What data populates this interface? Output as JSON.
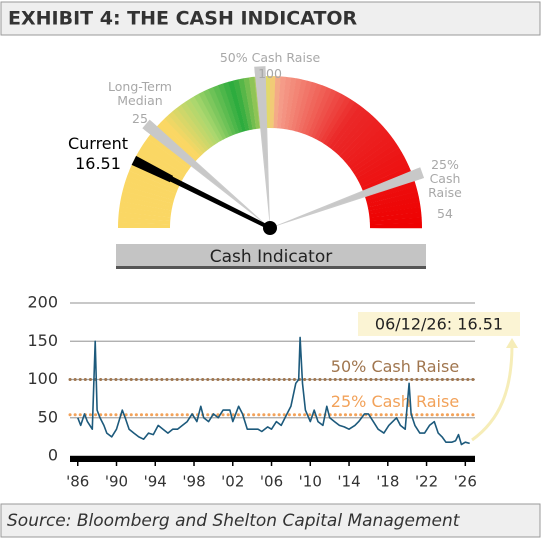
{
  "header": {
    "title": "EXHIBIT 4: THE CASH INDICATOR"
  },
  "chart_data": [
    {
      "type": "gauge",
      "title": "Cash Indicator",
      "lim": [
        0,
        112.5
      ],
      "current": {
        "label": "Current",
        "value": 16.51,
        "color": "#000000"
      },
      "markers": [
        {
          "label": "Long-Term Median",
          "value": 25
        },
        {
          "label": "25% Cash Raise",
          "value": 54
        },
        {
          "label": "50% Cash Raise",
          "value": 100
        }
      ],
      "marker_color": "#c8c8c8"
    },
    {
      "type": "line",
      "color": "#1d5a7c",
      "x": [
        1986,
        1986.3,
        1986.7,
        1987.0,
        1987.5,
        1987.8,
        1988.0,
        1988.3,
        1988.7,
        1989.0,
        1989.5,
        1990.0,
        1990.6,
        1990.9,
        1991.3,
        1991.8,
        1992.3,
        1992.8,
        1993.3,
        1993.8,
        1994.3,
        1994.8,
        1995.3,
        1995.8,
        1996.3,
        1996.8,
        1997.3,
        1997.8,
        1998.3,
        1998.7,
        1999.0,
        1999.5,
        2000.0,
        2000.5,
        2001.0,
        2001.7,
        2002.0,
        2002.6,
        2003.0,
        2003.5,
        2004.0,
        2004.6,
        2005.0,
        2005.6,
        2006.0,
        2006.5,
        2007.0,
        2007.6,
        2008.0,
        2008.5,
        2008.8,
        2008.95,
        2009.2,
        2009.5,
        2010.0,
        2010.4,
        2010.8,
        2011.3,
        2011.7,
        2012.0,
        2012.5,
        2013.0,
        2013.5,
        2014.0,
        2014.6,
        2015.0,
        2015.6,
        2016.0,
        2016.5,
        2017.0,
        2017.6,
        2018.1,
        2018.9,
        2019.3,
        2019.8,
        2020.2,
        2020.4,
        2020.8,
        2021.3,
        2021.8,
        2022.3,
        2022.8,
        2023.2,
        2023.6,
        2024.0,
        2024.6,
        2025.0,
        2025.3,
        2025.6,
        2026.0,
        2026.45
      ],
      "values": [
        50,
        40,
        55,
        45,
        35,
        150,
        60,
        50,
        40,
        30,
        25,
        35,
        60,
        50,
        35,
        30,
        25,
        22,
        30,
        28,
        40,
        35,
        30,
        35,
        35,
        40,
        45,
        55,
        45,
        65,
        50,
        45,
        55,
        50,
        60,
        60,
        45,
        65,
        55,
        35,
        35,
        35,
        32,
        38,
        35,
        45,
        40,
        55,
        65,
        95,
        100,
        155,
        95,
        60,
        45,
        60,
        45,
        40,
        65,
        50,
        45,
        40,
        38,
        35,
        40,
        45,
        55,
        55,
        45,
        35,
        30,
        40,
        50,
        40,
        35,
        95,
        55,
        40,
        30,
        30,
        40,
        45,
        30,
        25,
        18,
        18,
        20,
        28,
        15,
        18,
        16.51
      ],
      "xlim": [
        1985.2,
        2027.0
      ],
      "xticks": [
        {
          "value": 1986,
          "label": "'86"
        },
        {
          "value": 1990,
          "label": "'90"
        },
        {
          "value": 1994,
          "label": "'94"
        },
        {
          "value": 1998,
          "label": "'98"
        },
        {
          "value": 2002,
          "label": "'02"
        },
        {
          "value": 2006,
          "label": "'06"
        },
        {
          "value": 2010,
          "label": "'10"
        },
        {
          "value": 2014,
          "label": "'14"
        },
        {
          "value": 2018,
          "label": "'18"
        },
        {
          "value": 2022,
          "label": "'22"
        },
        {
          "value": 2026,
          "label": "'26"
        }
      ],
      "ylim": [
        0,
        200
      ],
      "yticks": [
        0,
        50,
        100,
        150,
        200
      ],
      "grid": true,
      "reference_lines": [
        {
          "label": "50% Cash Raise",
          "value": 100,
          "color": "#a0764f"
        },
        {
          "label": "25% Cash Raise",
          "value": 54,
          "color": "#f2a25a"
        }
      ],
      "annotation": "06/12/26: 16.51"
    }
  ],
  "source": "Source: Bloomberg and Shelton Capital Management"
}
